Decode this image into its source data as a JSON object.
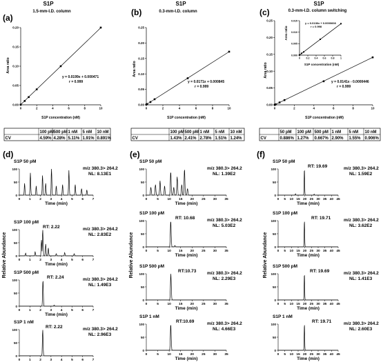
{
  "calibration_panels": [
    {
      "panel_label": "(a)",
      "title": "S1P",
      "subtitle": "1.5-mm-I.D. column",
      "equation": "y = 0.0199x + 0.000471",
      "r_text": "r = 0.999",
      "ylabel": "Area ratio",
      "xlabel": "S1P concentration (nM)",
      "x_ticks": [
        "0",
        "2",
        "4",
        "6",
        "8",
        "10"
      ],
      "y_ticks": [
        "0.00",
        "0.05",
        "0.10",
        "0.15",
        "0.20"
      ]
    },
    {
      "panel_label": "(b)",
      "title": "S1P",
      "subtitle": "0.3-mm-I.D. column",
      "equation": "y = 0.0171x + 0.000845",
      "r_text": "r = 0.999",
      "ylabel": "Area ratio",
      "xlabel": "S1P concentration (nM)",
      "x_ticks": [
        "0",
        "2",
        "4",
        "6",
        "8",
        "10"
      ],
      "y_ticks": [
        "0.00",
        "0.05",
        "0.10",
        "0.15",
        "0.20",
        "0.25"
      ]
    },
    {
      "panel_label": "(c)",
      "title": "S1P",
      "subtitle": "0.3-mm-I.D. column switching",
      "equation": "y = 0.0141x - 0.0000446",
      "r_text": "r = 0.999",
      "ylabel": "Area ratio",
      "xlabel": "S1P concentration (nM)",
      "x_ticks": [
        "0",
        "2",
        "4",
        "6",
        "8",
        "10"
      ],
      "y_ticks": [
        "0.00",
        "0.05",
        "0.10",
        "0.15",
        "0.20",
        "0.25"
      ],
      "inset": {
        "equation": "y = 0.0136x + 0.0000608",
        "r_text": "r = 0.998",
        "ylabel": "Area ratio",
        "xlabel": "S1P concentration (nM)",
        "x_ticks": [
          "0",
          "0.2",
          "0.4",
          "0.6",
          "0.8",
          "1"
        ],
        "y_ticks": [
          "0.000",
          "0.005",
          "0.010",
          "0.015"
        ]
      }
    }
  ],
  "cv_tables": [
    {
      "header": [
        "",
        "100 pM",
        "500 pM",
        "1 nM",
        "5 nM",
        "10 nM"
      ],
      "row": [
        "CV",
        "4.59%",
        "4.28%",
        "5.11%",
        "1.91%",
        "0.891%"
      ]
    },
    {
      "header": [
        "",
        "100 pM",
        "500 pM",
        "1 nM",
        "5 nM",
        "10 nM"
      ],
      "row": [
        "CV",
        "1.43%",
        "2.41%",
        "2.78%",
        "1.51%",
        "1.24%"
      ]
    },
    {
      "header": [
        "",
        "50 pM",
        "100 pM",
        "500 pM",
        "1 nM",
        "5 nM",
        "10 nM"
      ],
      "row": [
        "CV",
        "0.886%",
        "1.27%",
        "0.667%",
        "2.90%",
        "1.55%",
        "0.906%"
      ]
    }
  ],
  "chromatogram_columns": [
    {
      "panel_label": "(d)",
      "ylabel": "Relative Abundance",
      "xlabel": "Time (min)",
      "x_ticks": [
        "0",
        "1",
        "2",
        "3",
        "4",
        "5",
        "6",
        "7"
      ],
      "y_ticks": [
        "0",
        "50",
        "100"
      ],
      "traces": [
        {
          "label": "S1P 50 pM",
          "rt": "",
          "mz": "m/z 380.3> 264.2",
          "nl": "NL: 8.13E1"
        },
        {
          "label": "S1P 100 pM",
          "rt": "RT: 2.22",
          "mz": "m/z 380.3> 264.2",
          "nl": "NL: 2.83E2"
        },
        {
          "label": "S1P 500 pM",
          "rt": "RT: 2.24",
          "mz": "m/z 380.3> 264.2",
          "nl": "NL: 1.49E3"
        },
        {
          "label": "S1P 1 nM",
          "rt": "RT: 2.22",
          "mz": "m/z 380.3> 264.2",
          "nl": "NL: 2.96E3"
        }
      ]
    },
    {
      "panel_label": "(e)",
      "ylabel": "Relative Abundance",
      "xlabel": "Time (min)",
      "x_ticks": [
        "0",
        "5",
        "10",
        "15",
        "20",
        "25",
        "30",
        "35"
      ],
      "y_ticks": [
        "0",
        "50",
        "100"
      ],
      "traces": [
        {
          "label": "S1P 50 pM",
          "rt": "",
          "mz": "m/z 380.3> 264.2",
          "nl": "NL: 1.39E2"
        },
        {
          "label": "S1P 100 pM",
          "rt": "RT: 10.68",
          "mz": "m/z 380.3> 264.2",
          "nl": "NL: 5.03E2"
        },
        {
          "label": "S1P 500 pM",
          "rt": "RT:10.73",
          "mz": "m/z 380.3> 264.2",
          "nl": "NL: 2.29E3"
        },
        {
          "label": "S1P 1 nM",
          "rt": "RT:10.69",
          "mz": "m/z 380.3> 264.2",
          "nl": "NL: 4.66E3"
        }
      ]
    },
    {
      "panel_label": "(f)",
      "ylabel": "Relative Abundance",
      "xlabel": "Time (min)",
      "x_ticks": [
        "0",
        "5",
        "10",
        "15",
        "20",
        "25",
        "30",
        "35",
        "40",
        "45"
      ],
      "y_ticks": [
        "0",
        "50",
        "100"
      ],
      "traces": [
        {
          "label": "S1P 50 pM",
          "rt": "RT: 19.69",
          "mz": "m/z 380.3> 264.2",
          "nl": "NL: 1.59E2"
        },
        {
          "label": "S1P 100 pM",
          "rt": "RT: 19.71",
          "mz": "m/z 380.3> 264.2",
          "nl": "NL: 3.62E2"
        },
        {
          "label": "S1P 500 pM",
          "rt": "RT: 19.69",
          "mz": "m/z 380.3> 264.2",
          "nl": "NL: 1.41E3"
        },
        {
          "label": "S1P 1 nM",
          "rt": "RT: 19.71",
          "mz": "m/z 380.3> 264.2",
          "nl": "NL: 2.60E3"
        }
      ]
    }
  ],
  "chart_data": [
    {
      "type": "scatter",
      "title": "S1P",
      "subtitle": "1.5-mm-I.D. column",
      "xlabel": "S1P concentration (nM)",
      "ylabel": "Area ratio",
      "xlim": [
        0,
        10
      ],
      "ylim": [
        0,
        0.2
      ],
      "series": [
        {
          "x": [
            0,
            0.5,
            1,
            2,
            5,
            10
          ],
          "y": [
            0.0005,
            0.01,
            0.02,
            0.04,
            0.1,
            0.2
          ]
        }
      ],
      "fit": {
        "slope": 0.0199,
        "intercept": 0.000471
      }
    },
    {
      "type": "scatter",
      "title": "S1P",
      "subtitle": "0.3-mm-I.D. column",
      "xlabel": "S1P concentration (nM)",
      "ylabel": "Area ratio",
      "xlim": [
        0,
        10
      ],
      "ylim": [
        0,
        0.25
      ],
      "series": [
        {
          "x": [
            0,
            0.1,
            0.5,
            1,
            5,
            10
          ],
          "y": [
            0.001,
            0.0025,
            0.009,
            0.018,
            0.086,
            0.172
          ]
        }
      ],
      "fit": {
        "slope": 0.0171,
        "intercept": 0.000845
      }
    },
    {
      "type": "scatter",
      "title": "S1P",
      "subtitle": "0.3-mm-I.D. column switching",
      "xlabel": "S1P concentration (nM)",
      "ylabel": "Area ratio",
      "xlim": [
        0,
        10
      ],
      "ylim": [
        0,
        0.25
      ],
      "series": [
        {
          "x": [
            0,
            0.05,
            0.1,
            0.5,
            1,
            5,
            10
          ],
          "y": [
            0,
            0.0007,
            0.0014,
            0.007,
            0.014,
            0.07,
            0.141
          ]
        }
      ],
      "fit": {
        "slope": 0.0141,
        "intercept": -4.46e-05
      },
      "inset": {
        "xlim": [
          0,
          1
        ],
        "ylim": [
          0,
          0.015
        ],
        "series": [
          {
            "x": [
              0,
              0.05,
              0.1,
              0.5,
              1
            ],
            "y": [
              0.0001,
              0.0008,
              0.0014,
              0.0069,
              0.0137
            ]
          }
        ],
        "fit": {
          "slope": 0.0136,
          "intercept": 6.08e-05
        }
      }
    },
    {
      "type": "line",
      "xlabel": "Time (min)",
      "ylabel": "Relative Abundance",
      "xlim": [
        0,
        7
      ],
      "ylim": [
        0,
        100
      ],
      "series": [
        {
          "peaks": [
            [
              0.5,
              45
            ],
            [
              1.05,
              85
            ],
            [
              1.6,
              35
            ],
            [
              2.2,
              75
            ],
            [
              2.5,
              45
            ],
            [
              3.05,
              100
            ],
            [
              3.5,
              35
            ],
            [
              4.1,
              40
            ],
            [
              4.7,
              95
            ],
            [
              5.3,
              40
            ],
            [
              5.9,
              25
            ],
            [
              6.4,
              20
            ]
          ]
        },
        {
          "peaks": [
            [
              0.6,
              10
            ],
            [
              1.5,
              15
            ],
            [
              2.1,
              60
            ],
            [
              2.22,
              100
            ],
            [
              2.5,
              45
            ],
            [
              2.75,
              30
            ],
            [
              3.5,
              8
            ],
            [
              4.3,
              12
            ],
            [
              5.2,
              8
            ]
          ]
        },
        {
          "peaks": [
            [
              2.24,
              100
            ],
            [
              3.3,
              4
            ]
          ]
        },
        {
          "peaks": [
            [
              2.22,
              100
            ]
          ]
        }
      ]
    },
    {
      "type": "line",
      "xlabel": "Time (min)",
      "ylabel": "Relative Abundance",
      "xlim": [
        0,
        35
      ],
      "ylim": [
        0,
        100
      ],
      "series": [
        {
          "peaks": [
            [
              2,
              30
            ],
            [
              4,
              40
            ],
            [
              6,
              55
            ],
            [
              8,
              35
            ],
            [
              10.68,
              90
            ],
            [
              12,
              30
            ],
            [
              13.5,
              70
            ],
            [
              15.5,
              40
            ],
            [
              16.7,
              100
            ],
            [
              18,
              25
            ]
          ]
        },
        {
          "peaks": [
            [
              10.68,
              100
            ],
            [
              12.5,
              5
            ]
          ]
        },
        {
          "peaks": [
            [
              10.73,
              100
            ]
          ]
        },
        {
          "peaks": [
            [
              10.69,
              100
            ]
          ]
        }
      ]
    },
    {
      "type": "line",
      "xlabel": "Time (min)",
      "ylabel": "Relative Abundance",
      "xlim": [
        0,
        45
      ],
      "ylim": [
        0,
        100
      ],
      "series": [
        {
          "peaks": [
            [
              19.69,
              100
            ],
            [
              13,
              5
            ],
            [
              27,
              4
            ]
          ]
        },
        {
          "peaks": [
            [
              19.71,
              100
            ]
          ]
        },
        {
          "peaks": [
            [
              19.69,
              100
            ]
          ]
        },
        {
          "peaks": [
            [
              19.71,
              100
            ]
          ]
        }
      ]
    }
  ]
}
